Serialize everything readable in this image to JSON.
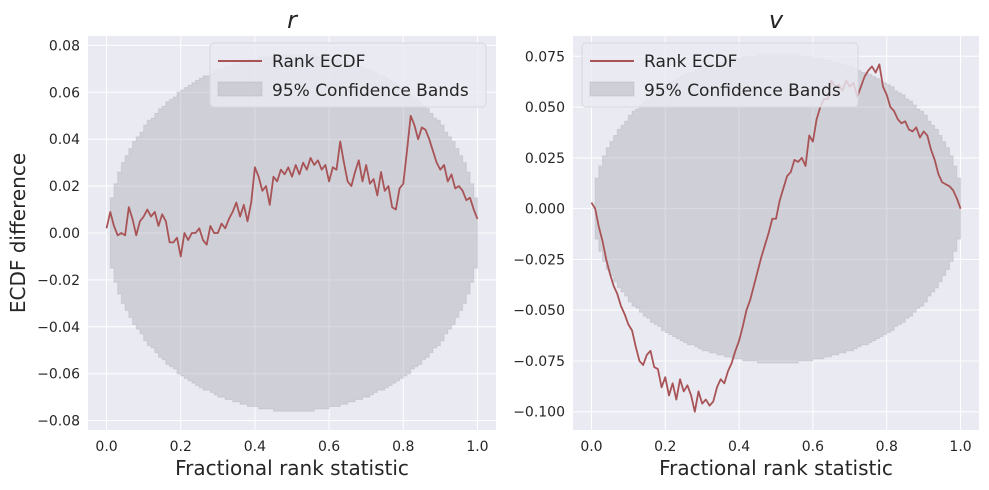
{
  "colors": {
    "background": "#eaeaf2",
    "grid": "#ffffff",
    "ecdf_line": "#a85456",
    "band_fill": "#b0b0b8"
  },
  "chart_data": [
    {
      "type": "line",
      "title": "r",
      "xlabel": "Fractional rank statistic",
      "ylabel": "ECDF difference",
      "xlim": [
        -0.05,
        1.05
      ],
      "ylim": [
        -0.084,
        0.084
      ],
      "xticks": [
        0.0,
        0.2,
        0.4,
        0.6,
        0.8,
        1.0
      ],
      "xtick_labels": [
        "0.0",
        "0.2",
        "0.4",
        "0.6",
        "0.8",
        "1.0"
      ],
      "yticks": [
        -0.08,
        -0.06,
        -0.04,
        -0.02,
        0.0,
        0.02,
        0.04,
        0.06,
        0.08
      ],
      "ytick_labels": [
        "−0.08",
        "−0.06",
        "−0.04",
        "−0.02",
        "0.00",
        "0.02",
        "0.04",
        "0.06",
        "0.08"
      ],
      "grid": true,
      "legend_position": "top-right",
      "legend": [
        "Rank ECDF",
        "95% Confidence Bands"
      ],
      "band_halfwidth_max": 0.076,
      "series": [
        {
          "name": "Rank ECDF",
          "x": [
            0.0,
            0.01,
            0.02,
            0.03,
            0.04,
            0.05,
            0.06,
            0.07,
            0.08,
            0.09,
            0.1,
            0.11,
            0.12,
            0.13,
            0.14,
            0.15,
            0.16,
            0.17,
            0.18,
            0.19,
            0.2,
            0.21,
            0.22,
            0.23,
            0.24,
            0.25,
            0.26,
            0.27,
            0.28,
            0.29,
            0.3,
            0.31,
            0.32,
            0.33,
            0.34,
            0.35,
            0.36,
            0.37,
            0.38,
            0.39,
            0.4,
            0.41,
            0.42,
            0.43,
            0.44,
            0.45,
            0.46,
            0.47,
            0.48,
            0.49,
            0.5,
            0.51,
            0.52,
            0.53,
            0.54,
            0.55,
            0.56,
            0.57,
            0.58,
            0.59,
            0.6,
            0.61,
            0.62,
            0.63,
            0.64,
            0.65,
            0.66,
            0.67,
            0.68,
            0.69,
            0.7,
            0.71,
            0.72,
            0.73,
            0.74,
            0.75,
            0.76,
            0.77,
            0.78,
            0.79,
            0.8,
            0.81,
            0.82,
            0.83,
            0.84,
            0.85,
            0.86,
            0.87,
            0.88,
            0.89,
            0.9,
            0.91,
            0.92,
            0.93,
            0.94,
            0.95,
            0.96,
            0.97,
            0.98,
            0.99,
            1.0
          ],
          "values": [
            0.002,
            0.009,
            0.003,
            -0.001,
            0.0,
            -0.001,
            0.011,
            0.006,
            -0.001,
            0.005,
            0.007,
            0.01,
            0.007,
            0.009,
            0.003,
            0.008,
            0.005,
            -0.004,
            -0.004,
            -0.002,
            -0.01,
            0.0,
            -0.003,
            0.0,
            0.0,
            0.002,
            -0.003,
            -0.005,
            0.003,
            0.0,
            0.0,
            0.004,
            0.002,
            0.006,
            0.009,
            0.013,
            0.007,
            0.012,
            0.005,
            0.013,
            0.028,
            0.024,
            0.018,
            0.02,
            0.012,
            0.024,
            0.022,
            0.027,
            0.025,
            0.028,
            0.024,
            0.029,
            0.025,
            0.03,
            0.027,
            0.032,
            0.029,
            0.031,
            0.027,
            0.029,
            0.022,
            0.028,
            0.027,
            0.039,
            0.03,
            0.022,
            0.02,
            0.026,
            0.031,
            0.022,
            0.029,
            0.021,
            0.023,
            0.016,
            0.026,
            0.018,
            0.02,
            0.011,
            0.01,
            0.019,
            0.021,
            0.035,
            0.05,
            0.046,
            0.04,
            0.045,
            0.044,
            0.04,
            0.035,
            0.03,
            0.027,
            0.029,
            0.022,
            0.025,
            0.019,
            0.02,
            0.018,
            0.014,
            0.015,
            0.01,
            0.006
          ]
        }
      ]
    },
    {
      "type": "line",
      "title": "v",
      "xlabel": "Fractional rank statistic",
      "ylabel": "",
      "xlim": [
        -0.05,
        1.05
      ],
      "ylim": [
        -0.109,
        0.085
      ],
      "xticks": [
        0.0,
        0.2,
        0.4,
        0.6,
        0.8,
        1.0
      ],
      "xtick_labels": [
        "0.0",
        "0.2",
        "0.4",
        "0.6",
        "0.8",
        "1.0"
      ],
      "yticks": [
        -0.1,
        -0.075,
        -0.05,
        -0.025,
        0.0,
        0.025,
        0.05,
        0.075
      ],
      "ytick_labels": [
        "−0.100",
        "−0.075",
        "−0.050",
        "−0.025",
        "0.000",
        "0.025",
        "0.050",
        "0.075"
      ],
      "grid": true,
      "legend_position": "top-left",
      "legend": [
        "Rank ECDF",
        "95% Confidence Bands"
      ],
      "band_halfwidth_max": 0.076,
      "series": [
        {
          "name": "Rank ECDF",
          "x": [
            0.0,
            0.01,
            0.02,
            0.03,
            0.04,
            0.05,
            0.06,
            0.07,
            0.08,
            0.09,
            0.1,
            0.11,
            0.12,
            0.13,
            0.14,
            0.15,
            0.16,
            0.17,
            0.18,
            0.19,
            0.2,
            0.21,
            0.22,
            0.23,
            0.24,
            0.25,
            0.26,
            0.27,
            0.28,
            0.29,
            0.3,
            0.31,
            0.32,
            0.33,
            0.34,
            0.35,
            0.36,
            0.37,
            0.38,
            0.39,
            0.4,
            0.41,
            0.42,
            0.43,
            0.44,
            0.45,
            0.46,
            0.47,
            0.48,
            0.49,
            0.5,
            0.51,
            0.52,
            0.53,
            0.54,
            0.55,
            0.56,
            0.57,
            0.58,
            0.59,
            0.6,
            0.61,
            0.62,
            0.63,
            0.64,
            0.65,
            0.66,
            0.67,
            0.68,
            0.69,
            0.7,
            0.71,
            0.72,
            0.73,
            0.74,
            0.75,
            0.76,
            0.77,
            0.78,
            0.79,
            0.8,
            0.81,
            0.82,
            0.83,
            0.84,
            0.85,
            0.86,
            0.87,
            0.88,
            0.89,
            0.9,
            0.91,
            0.92,
            0.93,
            0.94,
            0.95,
            0.96,
            0.97,
            0.98,
            0.99,
            1.0
          ],
          "values": [
            0.003,
            0.0,
            -0.009,
            -0.016,
            -0.025,
            -0.032,
            -0.038,
            -0.042,
            -0.048,
            -0.052,
            -0.057,
            -0.06,
            -0.068,
            -0.075,
            -0.077,
            -0.072,
            -0.07,
            -0.078,
            -0.079,
            -0.088,
            -0.083,
            -0.092,
            -0.086,
            -0.094,
            -0.084,
            -0.09,
            -0.087,
            -0.092,
            -0.1,
            -0.09,
            -0.096,
            -0.094,
            -0.097,
            -0.095,
            -0.088,
            -0.084,
            -0.086,
            -0.08,
            -0.076,
            -0.07,
            -0.065,
            -0.058,
            -0.05,
            -0.045,
            -0.038,
            -0.031,
            -0.024,
            -0.018,
            -0.012,
            -0.005,
            -0.005,
            0.004,
            0.01,
            0.016,
            0.018,
            0.024,
            0.023,
            0.025,
            0.021,
            0.036,
            0.033,
            0.044,
            0.05,
            0.054,
            0.054,
            0.063,
            0.06,
            0.061,
            0.058,
            0.063,
            0.06,
            0.062,
            0.055,
            0.06,
            0.065,
            0.068,
            0.07,
            0.067,
            0.071,
            0.06,
            0.056,
            0.05,
            0.048,
            0.044,
            0.042,
            0.043,
            0.039,
            0.038,
            0.04,
            0.035,
            0.038,
            0.036,
            0.029,
            0.024,
            0.017,
            0.013,
            0.012,
            0.011,
            0.009,
            0.005,
            0.0
          ]
        }
      ]
    }
  ]
}
